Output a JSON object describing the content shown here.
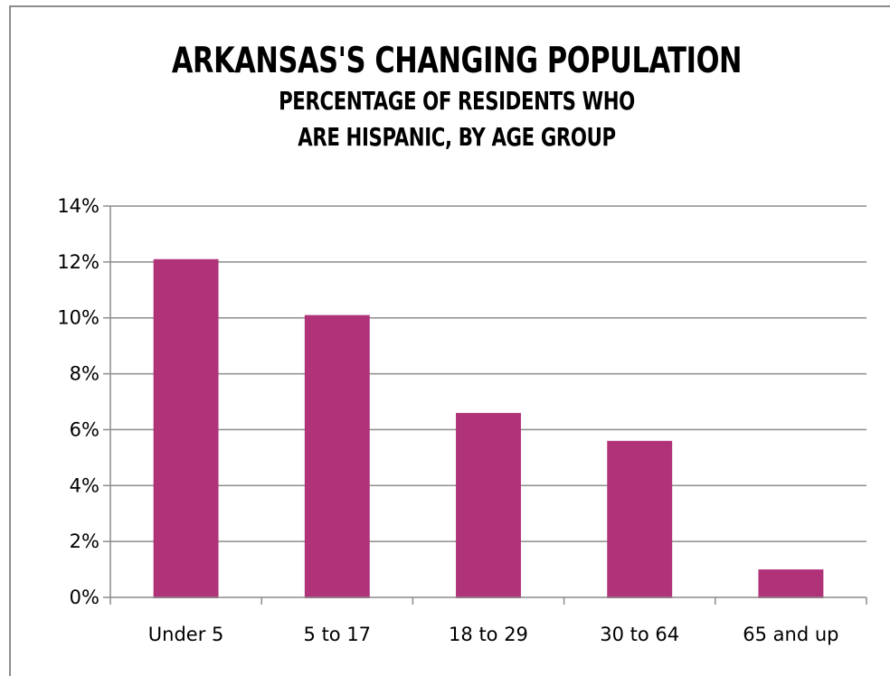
{
  "chart_data": {
    "type": "bar",
    "title": "Arkansas's Changing Population",
    "subtitle_line1": "Percentage of residents who",
    "subtitle_line2": "are Hispanic, by age group",
    "xlabel": "",
    "ylabel": "",
    "categories": [
      "Under 5",
      "5 to 17",
      "18 to 29",
      "30 to 64",
      "65 and up"
    ],
    "values": [
      12.1,
      10.1,
      6.6,
      5.6,
      1.0
    ],
    "ylim": [
      0,
      14
    ],
    "yticks": [
      0,
      2,
      4,
      6,
      8,
      10,
      12,
      14
    ],
    "ytick_labels": [
      "0%",
      "2%",
      "4%",
      "6%",
      "8%",
      "10%",
      "12%",
      "14%"
    ],
    "grid": true,
    "legend": "none",
    "bar_color": "#b0337a",
    "grid_color": "#8c8c8c"
  }
}
